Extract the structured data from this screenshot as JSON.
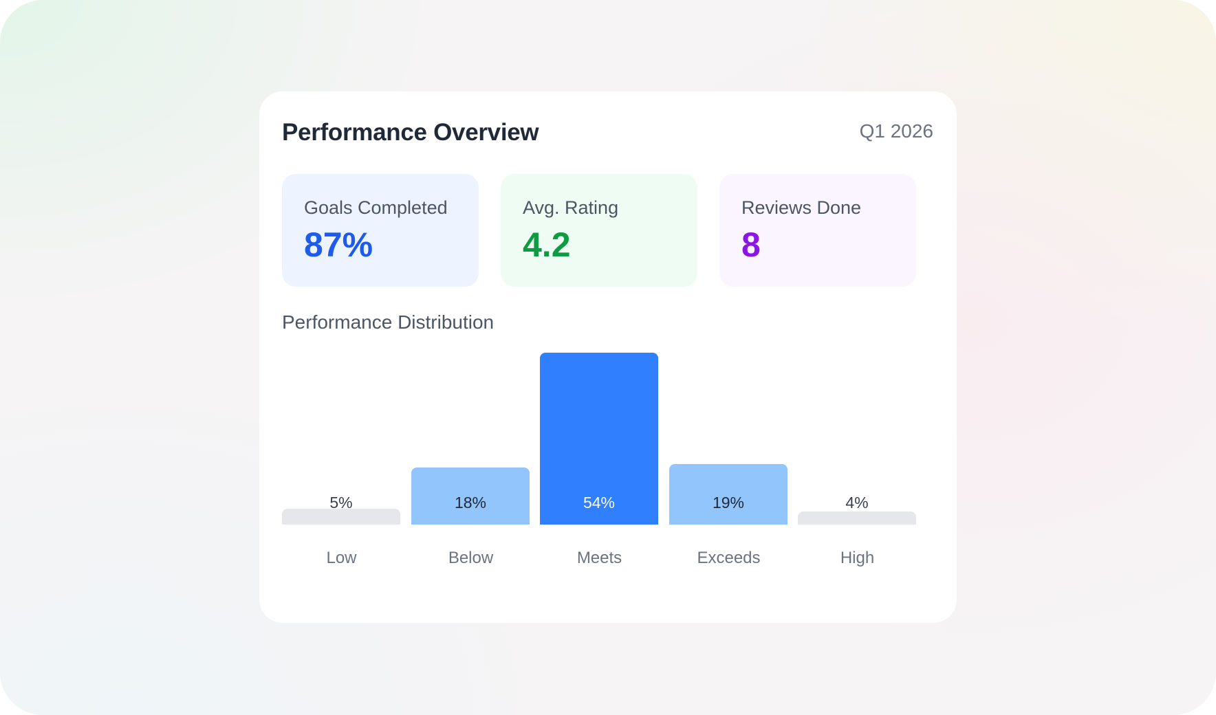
{
  "header": {
    "title": "Performance Overview",
    "period": "Q1 2026"
  },
  "stats": [
    {
      "label": "Goals Completed",
      "value": "87%",
      "color": "#1d5be8",
      "background": "#eef4ff"
    },
    {
      "label": "Avg. Rating",
      "value": "4.2",
      "color": "#0f9a44",
      "background": "#effcf3"
    },
    {
      "label": "Reviews Done",
      "value": "8",
      "color": "#8a17e4",
      "background": "#faf5ff"
    }
  ],
  "distribution": {
    "title": "Performance Distribution"
  },
  "chart_data": {
    "type": "bar",
    "categories": [
      "Low",
      "Below",
      "Meets",
      "Exceeds",
      "High"
    ],
    "values": [
      5,
      18,
      54,
      19,
      4
    ],
    "value_labels": [
      "5%",
      "18%",
      "54%",
      "19%",
      "4%"
    ],
    "bar_colors": [
      "#e5e7eb",
      "#93c5fd",
      "#2f7ffe",
      "#93c5fd",
      "#e5e7eb"
    ],
    "label_colors": [
      "#374151",
      "#1f2937",
      "#ffffff",
      "#1f2937",
      "#374151"
    ],
    "ylim": [
      0,
      54
    ],
    "grid": false
  }
}
